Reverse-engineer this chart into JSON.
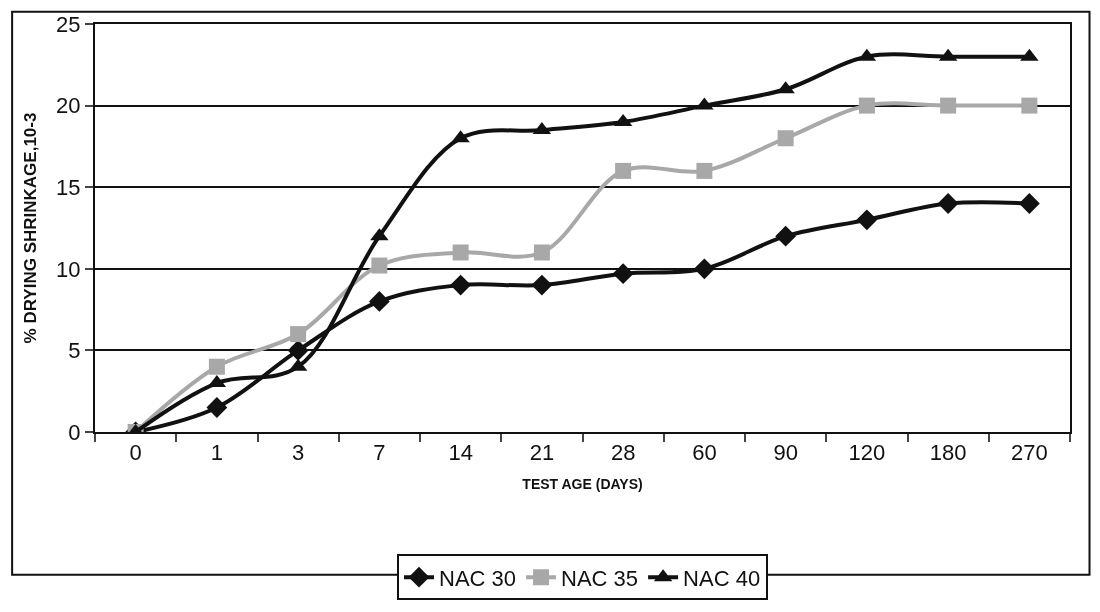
{
  "chart_data": {
    "type": "line",
    "xlabel": "TEST AGE (DAYS)",
    "ylabel": "% DRYING SHRINKAGE,10-3",
    "categories": [
      "0",
      "1",
      "3",
      "7",
      "14",
      "21",
      "28",
      "60",
      "90",
      "120",
      "180",
      "270"
    ],
    "series": [
      {
        "name": "NAC 30",
        "color": "#111111",
        "marker": "diamond",
        "values": [
          0,
          1.5,
          5,
          8,
          9,
          9,
          9.7,
          10,
          12,
          13,
          14,
          14
        ]
      },
      {
        "name": "NAC 35",
        "color": "#a8a8a8",
        "marker": "square",
        "values": [
          0,
          4,
          6,
          10.2,
          11,
          11,
          16,
          16,
          18,
          20,
          20,
          20
        ]
      },
      {
        "name": "NAC 40",
        "color": "#111111",
        "marker": "triangle",
        "values": [
          0,
          3,
          4,
          12,
          18,
          18.5,
          19,
          20,
          21,
          23,
          23,
          23
        ]
      }
    ],
    "ylim": [
      0,
      25
    ],
    "yticks": [
      0,
      5,
      10,
      15,
      20,
      25
    ],
    "grid": "y",
    "legend": "bottom"
  }
}
